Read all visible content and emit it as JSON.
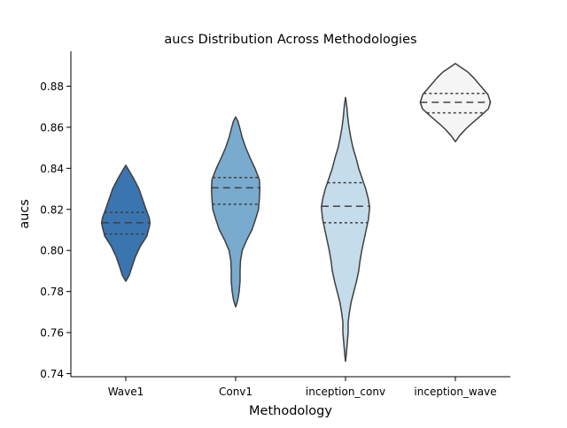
{
  "chart_data": {
    "type": "violin",
    "title": "aucs Distribution Across Methodologies",
    "xlabel": "Methodology",
    "ylabel": "aucs",
    "ylim": [
      0.7385,
      0.897
    ],
    "yticks": [
      0.74,
      0.76,
      0.78,
      0.8,
      0.82,
      0.84,
      0.86,
      0.88
    ],
    "ytick_labels": [
      "0.74",
      "0.76",
      "0.78",
      "0.80",
      "0.82",
      "0.84",
      "0.86",
      "0.88"
    ],
    "categories": [
      "Wave1",
      "Conv1",
      "inception_conv",
      "inception_wave"
    ],
    "colors": [
      "#3b75af",
      "#78abcd",
      "#c5dceb",
      "#f5f5f5"
    ],
    "grid": false,
    "violins": [
      {
        "name": "Wave1",
        "min": 0.785,
        "q1": 0.808,
        "median": 0.8135,
        "q3": 0.8185,
        "max": 0.8415,
        "profile": [
          [
            0.785,
            0.001
          ],
          [
            0.788,
            0.08
          ],
          [
            0.792,
            0.14
          ],
          [
            0.797,
            0.22
          ],
          [
            0.802,
            0.33
          ],
          [
            0.807,
            0.48
          ],
          [
            0.812,
            0.54
          ],
          [
            0.8135,
            0.55
          ],
          [
            0.816,
            0.53
          ],
          [
            0.82,
            0.46
          ],
          [
            0.825,
            0.38
          ],
          [
            0.83,
            0.3
          ],
          [
            0.835,
            0.18
          ],
          [
            0.839,
            0.07
          ],
          [
            0.8415,
            0.001
          ]
        ]
      },
      {
        "name": "Conv1",
        "min": 0.7725,
        "q1": 0.8225,
        "median": 0.8305,
        "q3": 0.8355,
        "max": 0.865,
        "profile": [
          [
            0.7725,
            0.001
          ],
          [
            0.776,
            0.05
          ],
          [
            0.78,
            0.08
          ],
          [
            0.785,
            0.1
          ],
          [
            0.79,
            0.1
          ],
          [
            0.795,
            0.11
          ],
          [
            0.8,
            0.15
          ],
          [
            0.805,
            0.25
          ],
          [
            0.81,
            0.37
          ],
          [
            0.815,
            0.45
          ],
          [
            0.82,
            0.52
          ],
          [
            0.825,
            0.54
          ],
          [
            0.83,
            0.55
          ],
          [
            0.8345,
            0.54
          ],
          [
            0.84,
            0.44
          ],
          [
            0.845,
            0.33
          ],
          [
            0.85,
            0.23
          ],
          [
            0.855,
            0.15
          ],
          [
            0.86,
            0.09
          ],
          [
            0.863,
            0.05
          ],
          [
            0.865,
            0.001
          ]
        ]
      },
      {
        "name": "inception_conv",
        "min": 0.746,
        "q1": 0.8135,
        "median": 0.8215,
        "q3": 0.833,
        "max": 0.8745,
        "profile": [
          [
            0.746,
            0.001
          ],
          [
            0.75,
            0.02
          ],
          [
            0.755,
            0.04
          ],
          [
            0.76,
            0.06
          ],
          [
            0.765,
            0.06
          ],
          [
            0.77,
            0.09
          ],
          [
            0.775,
            0.13
          ],
          [
            0.78,
            0.19
          ],
          [
            0.785,
            0.25
          ],
          [
            0.79,
            0.3
          ],
          [
            0.795,
            0.33
          ],
          [
            0.8,
            0.37
          ],
          [
            0.805,
            0.42
          ],
          [
            0.81,
            0.47
          ],
          [
            0.815,
            0.52
          ],
          [
            0.821,
            0.55
          ],
          [
            0.825,
            0.52
          ],
          [
            0.83,
            0.46
          ],
          [
            0.835,
            0.38
          ],
          [
            0.84,
            0.3
          ],
          [
            0.845,
            0.24
          ],
          [
            0.85,
            0.17
          ],
          [
            0.855,
            0.12
          ],
          [
            0.86,
            0.08
          ],
          [
            0.865,
            0.05
          ],
          [
            0.87,
            0.03
          ],
          [
            0.8745,
            0.001
          ]
        ]
      },
      {
        "name": "inception_wave",
        "min": 0.853,
        "q1": 0.867,
        "median": 0.8722,
        "q3": 0.8765,
        "max": 0.891,
        "profile": [
          [
            0.853,
            0.001
          ],
          [
            0.856,
            0.1
          ],
          [
            0.859,
            0.23
          ],
          [
            0.862,
            0.38
          ],
          [
            0.866,
            0.6
          ],
          [
            0.869,
            0.75
          ],
          [
            0.8722,
            0.8
          ],
          [
            0.876,
            0.74
          ],
          [
            0.88,
            0.58
          ],
          [
            0.884,
            0.42
          ],
          [
            0.887,
            0.28
          ],
          [
            0.889,
            0.14
          ],
          [
            0.891,
            0.001
          ]
        ]
      }
    ]
  }
}
